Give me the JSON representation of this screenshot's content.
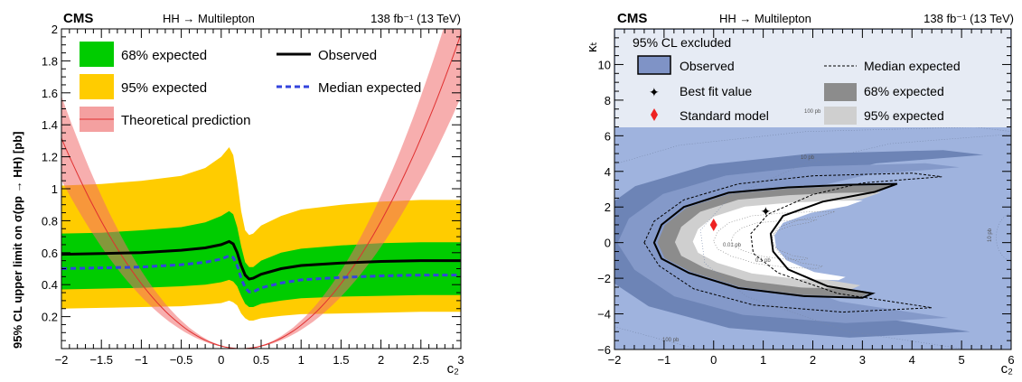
{
  "chart_data": [
    {
      "type": "line",
      "header": {
        "experiment": "CMS",
        "process": "HH → Multilepton",
        "lumi": "138 fb⁻¹ (13 TeV)"
      },
      "xlabel": "c₂",
      "ylabel": "95% CL upper limit on σ(pp → HH) [pb]",
      "xlim": [
        -2,
        3
      ],
      "ylim": [
        0,
        2
      ],
      "xticks": [
        "−2",
        "−1.5",
        "−1",
        "−0.5",
        "0",
        "0.5",
        "1",
        "1.5",
        "2",
        "2.5",
        "3"
      ],
      "yticks": [
        "0.2",
        "0.4",
        "0.6",
        "0.8",
        "1",
        "1.2",
        "1.4",
        "1.6",
        "1.8",
        "2"
      ],
      "legend": {
        "band68": "68% expected",
        "band95": "95% expected",
        "theory": "Theoretical prediction",
        "observed": "Observed",
        "median": "Median expected"
      },
      "colors": {
        "band68": "#00cc00",
        "band95": "#ffcc00",
        "theory": "#f06b6b",
        "observed": "#000000",
        "median": "#3344dd"
      },
      "x": [
        -2,
        -1.5,
        -1,
        -0.5,
        -0.2,
        0,
        0.1,
        0.15,
        0.2,
        0.25,
        0.3,
        0.35,
        0.4,
        0.5,
        0.75,
        1,
        1.5,
        2,
        2.5,
        3
      ],
      "series": [
        {
          "name": "Observed",
          "values": [
            0.59,
            0.595,
            0.6,
            0.615,
            0.63,
            0.65,
            0.67,
            0.655,
            0.6,
            0.52,
            0.46,
            0.435,
            0.44,
            0.465,
            0.5,
            0.52,
            0.535,
            0.545,
            0.55,
            0.55
          ]
        },
        {
          "name": "Median expected",
          "values": [
            0.5,
            0.505,
            0.51,
            0.525,
            0.54,
            0.56,
            0.58,
            0.57,
            0.52,
            0.44,
            0.38,
            0.355,
            0.355,
            0.38,
            0.41,
            0.43,
            0.445,
            0.455,
            0.46,
            0.46
          ]
        }
      ],
      "band68": {
        "lower": [
          0.37,
          0.375,
          0.38,
          0.39,
          0.4,
          0.415,
          0.43,
          0.42,
          0.39,
          0.33,
          0.28,
          0.26,
          0.26,
          0.28,
          0.3,
          0.315,
          0.325,
          0.33,
          0.335,
          0.335
        ],
        "upper": [
          0.72,
          0.725,
          0.74,
          0.76,
          0.79,
          0.83,
          0.86,
          0.84,
          0.76,
          0.64,
          0.54,
          0.51,
          0.51,
          0.55,
          0.6,
          0.625,
          0.645,
          0.66,
          0.665,
          0.665
        ]
      },
      "band95": {
        "lower": [
          0.25,
          0.255,
          0.26,
          0.265,
          0.275,
          0.285,
          0.3,
          0.29,
          0.27,
          0.22,
          0.19,
          0.175,
          0.175,
          0.19,
          0.205,
          0.215,
          0.22,
          0.225,
          0.23,
          0.23
        ],
        "upper": [
          1.02,
          1.03,
          1.05,
          1.08,
          1.13,
          1.2,
          1.26,
          1.21,
          1.05,
          0.86,
          0.74,
          0.71,
          0.72,
          0.77,
          0.83,
          0.87,
          0.9,
          0.92,
          0.93,
          0.93
        ]
      },
      "theory": {
        "c2_min": 0.25,
        "coefficient": 0.26,
        "band_width": [
          0.8,
          1.2
        ]
      }
    },
    {
      "type": "contour",
      "header": {
        "experiment": "CMS",
        "process": "HH → Multilepton",
        "lumi": "138 fb⁻¹ (13 TeV)"
      },
      "title": "95% CL excluded",
      "xlabel": "c₂",
      "ylabel": "κₜ",
      "xlim": [
        -2,
        6
      ],
      "ylim": [
        -6,
        12
      ],
      "xticks": [
        "−2",
        "−1",
        "0",
        "1",
        "2",
        "3",
        "4",
        "5",
        "6"
      ],
      "yticks": [
        "−6",
        "−4",
        "−2",
        "0",
        "2",
        "4",
        "6",
        "8",
        "10"
      ],
      "legend": {
        "observed": "Observed",
        "median": "Median expected",
        "bestfit": "Best fit value",
        "band68": "68% expected",
        "sm": "Standard model",
        "band95": "95% expected"
      },
      "colors": {
        "excluded": "#9fb3de",
        "dark": "#6d84b6",
        "mid": "#8499c9",
        "band68": "#8c8c8c",
        "band95": "#cfcfcf",
        "allowed": "#ffffff",
        "sm": "#ee2222"
      },
      "best_fit": {
        "c2": 1.05,
        "kt": 1.75
      },
      "standard_model": {
        "c2": 0,
        "kt": 1
      },
      "observed_contour": [
        [
          -1.2,
          0
        ],
        [
          -1.05,
          1.0
        ],
        [
          -0.6,
          2.0
        ],
        [
          0.3,
          2.8
        ],
        [
          1.5,
          3.1
        ],
        [
          2.7,
          3.25
        ],
        [
          3.7,
          3.3
        ],
        [
          3.25,
          2.85
        ],
        [
          2.2,
          2.3
        ],
        [
          1.4,
          1.5
        ],
        [
          1.15,
          0.5
        ],
        [
          1.2,
          -0.5
        ],
        [
          1.5,
          -1.5
        ],
        [
          2.3,
          -2.45
        ],
        [
          3.2,
          -2.85
        ],
        [
          3.0,
          -3.1
        ],
        [
          1.8,
          -3.0
        ],
        [
          0.5,
          -2.55
        ],
        [
          -0.5,
          -1.7
        ],
        [
          -1.05,
          -0.9
        ]
      ],
      "median_contour": [
        [
          -1.4,
          0
        ],
        [
          -1.2,
          1.2
        ],
        [
          -0.6,
          2.4
        ],
        [
          0.5,
          3.3
        ],
        [
          2.0,
          3.75
        ],
        [
          4.0,
          3.9
        ],
        [
          4.6,
          3.7
        ],
        [
          3.0,
          3.35
        ],
        [
          2.0,
          2.7
        ],
        [
          1.1,
          1.6
        ],
        [
          0.75,
          0.5
        ],
        [
          0.8,
          -0.6
        ],
        [
          1.3,
          -1.7
        ],
        [
          2.5,
          -2.85
        ],
        [
          4.4,
          -3.65
        ],
        [
          2.6,
          -3.9
        ],
        [
          0.8,
          -3.5
        ],
        [
          -0.4,
          -2.6
        ],
        [
          -1.1,
          -1.3
        ]
      ],
      "annotations": [
        "10 pb",
        "100 pb",
        "0.01 pb",
        "0.1 pb",
        "10 pb",
        "100 pb"
      ]
    }
  ]
}
